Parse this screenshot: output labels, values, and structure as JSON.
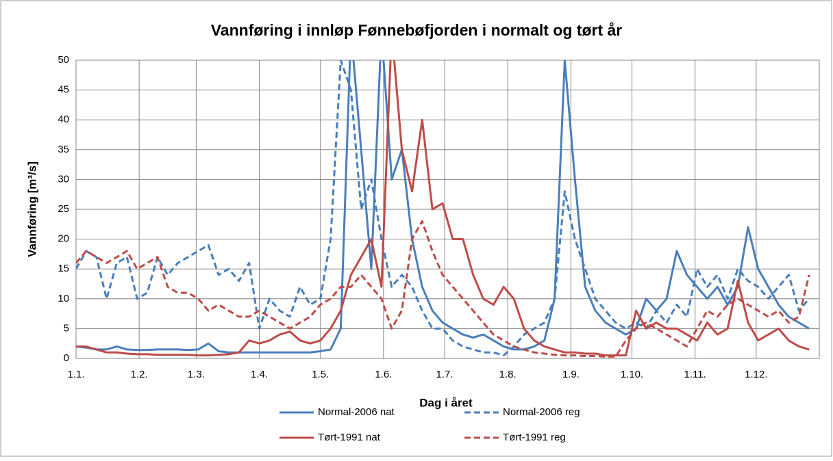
{
  "chart_data": {
    "type": "line",
    "title": "Vannføring i innløp Fønnebøfjorden  i normalt  og tørt år",
    "x_label": "Dag i året",
    "y_label": "Vannføring [m³/s]",
    "x": [
      0,
      5,
      10,
      15,
      20,
      25,
      30,
      35,
      40,
      45,
      50,
      55,
      60,
      65,
      70,
      75,
      80,
      85,
      90,
      95,
      100,
      105,
      110,
      115,
      120,
      125,
      130,
      135,
      140,
      145,
      150,
      155,
      160,
      165,
      170,
      175,
      180,
      185,
      190,
      195,
      200,
      205,
      210,
      215,
      220,
      225,
      230,
      235,
      240,
      245,
      250,
      255,
      260,
      265,
      270,
      275,
      280,
      285,
      290,
      295,
      300,
      305,
      310,
      315,
      320,
      325,
      330,
      335,
      340,
      345,
      350,
      355,
      360
    ],
    "xlim": [
      0,
      365
    ],
    "xticks": [
      {
        "value": 0,
        "label": "1.1."
      },
      {
        "value": 31,
        "label": "1.2."
      },
      {
        "value": 59,
        "label": "1.3."
      },
      {
        "value": 90,
        "label": "1.4."
      },
      {
        "value": 120,
        "label": "1.5."
      },
      {
        "value": 151,
        "label": "1.6."
      },
      {
        "value": 181,
        "label": "1.7."
      },
      {
        "value": 212,
        "label": "1.8."
      },
      {
        "value": 243,
        "label": "1.9."
      },
      {
        "value": 273,
        "label": "1.10."
      },
      {
        "value": 304,
        "label": "1.11."
      },
      {
        "value": 334,
        "label": "1.12."
      }
    ],
    "ylim": [
      0,
      50
    ],
    "yticks": [
      0,
      5,
      10,
      15,
      20,
      25,
      30,
      35,
      40,
      45,
      50
    ],
    "grid": true,
    "legend": "bottom",
    "series": [
      {
        "name": "Normal-2006 nat",
        "color": "#4a7ebb",
        "dash": false,
        "values": [
          2,
          1.8,
          1.5,
          1.5,
          2,
          1.5,
          1.4,
          1.4,
          1.5,
          1.5,
          1.5,
          1.4,
          1.5,
          2.5,
          1.2,
          1,
          1,
          1,
          1,
          1,
          1,
          1,
          1,
          1,
          1.2,
          1.5,
          5,
          55,
          35,
          15,
          55,
          30,
          35,
          20,
          12,
          8,
          6,
          5,
          4,
          3.5,
          4,
          3,
          2,
          1.5,
          1.5,
          2,
          3,
          10,
          50,
          30,
          12,
          8,
          6,
          5,
          4,
          5,
          10,
          8,
          10,
          18,
          14,
          12,
          10,
          12,
          9,
          12,
          22,
          15,
          12,
          9,
          7,
          6,
          5
        ]
      },
      {
        "name": "Normal-2006 reg",
        "color": "#4a7ebb",
        "dash": true,
        "values": [
          15,
          18,
          17,
          10,
          16,
          17,
          10,
          11,
          17,
          14,
          16,
          17,
          18,
          19,
          14,
          15,
          13,
          16,
          5,
          10,
          8,
          7,
          12,
          9,
          10,
          20,
          50,
          45,
          25,
          30,
          20,
          12,
          14,
          12,
          8,
          5,
          5,
          3,
          2,
          1.5,
          1,
          1,
          0.5,
          2,
          4,
          5,
          6,
          10,
          28,
          20,
          15,
          10,
          8,
          6,
          5,
          6,
          5,
          8,
          6,
          9,
          7,
          15,
          12,
          14,
          10,
          15,
          13,
          12,
          10,
          12,
          14,
          8,
          10
        ]
      },
      {
        "name": "Tørt-1991 nat",
        "color": "#be4b48",
        "dash": false,
        "values": [
          2,
          2,
          1.5,
          1,
          1,
          0.8,
          0.7,
          0.7,
          0.6,
          0.6,
          0.6,
          0.6,
          0.5,
          0.5,
          0.6,
          0.7,
          1,
          3,
          2.5,
          3,
          4,
          4.5,
          3,
          2.5,
          3,
          5,
          8,
          14,
          17,
          20,
          12,
          55,
          35,
          28,
          40,
          25,
          26,
          20,
          20,
          14,
          10,
          9,
          12,
          10,
          5,
          3,
          2,
          1.5,
          1,
          1,
          0.8,
          0.8,
          0.5,
          0.5,
          0.5,
          8,
          5,
          6,
          5,
          5,
          4,
          3,
          6,
          4,
          5,
          13,
          6,
          3,
          4,
          5,
          3,
          2,
          1.5
        ]
      },
      {
        "name": "Tørt-1991 reg",
        "color": "#be4b48",
        "dash": true,
        "values": [
          16,
          18,
          17,
          16,
          17,
          18,
          15,
          16,
          17,
          12,
          11,
          11,
          10,
          8,
          9,
          8,
          7,
          7,
          8,
          7,
          6,
          5,
          6,
          7,
          9,
          10,
          12,
          12,
          14,
          12,
          10,
          5,
          8,
          20,
          23,
          18,
          14,
          12,
          10,
          8,
          6,
          4,
          3,
          2,
          1.5,
          1,
          0.8,
          0.6,
          0.5,
          0.5,
          0.4,
          0.4,
          0.3,
          0.3,
          3,
          5,
          6,
          5,
          4,
          3,
          2,
          5,
          8,
          7,
          9,
          10,
          9,
          8,
          7,
          8,
          6,
          7,
          14
        ]
      }
    ]
  }
}
